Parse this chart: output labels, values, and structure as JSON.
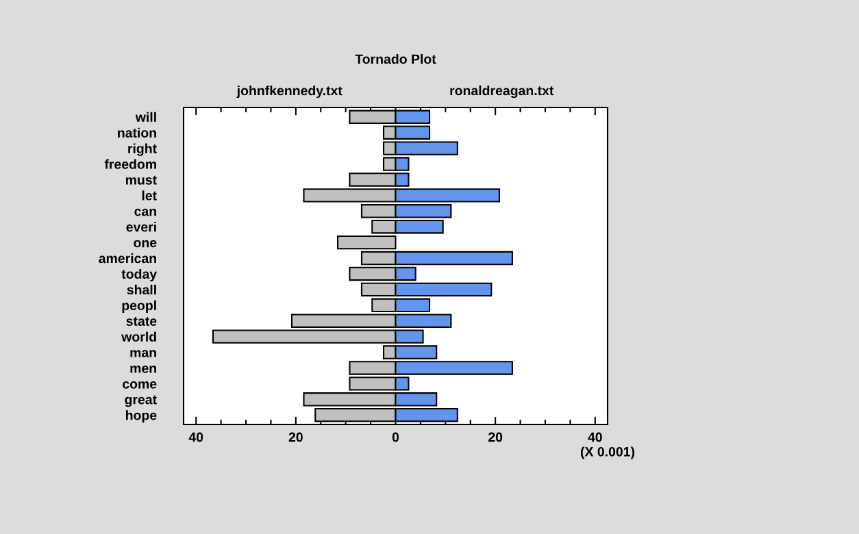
{
  "chart_data": {
    "type": "bar",
    "stacked": true,
    "orientation": "horizontal",
    "title": "Tornado Plot",
    "categories": [
      "will",
      "nation",
      "right",
      "freedom",
      "must",
      "let",
      "can",
      "everi",
      "one",
      "american",
      "today",
      "shall",
      "peopl",
      "state",
      "world",
      "man",
      "men",
      "come",
      "great",
      "hope"
    ],
    "series": [
      {
        "name": "johnfkennedy.txt",
        "color": "#c0c0c0",
        "values": [
          -9.2,
          -2.4,
          -2.4,
          -2.4,
          -9.2,
          -18.4,
          -6.8,
          -4.7,
          -11.6,
          -6.8,
          -9.2,
          -6.8,
          -4.7,
          -20.8,
          -36.6,
          -2.4,
          -9.2,
          -9.2,
          -18.4,
          -16.1
        ]
      },
      {
        "name": "ronaldreagan.txt",
        "color": "#6495ed",
        "values": [
          6.8,
          6.8,
          12.4,
          2.6,
          2.6,
          20.8,
          11.1,
          9.5,
          null,
          23.4,
          4.0,
          19.2,
          6.8,
          11.1,
          5.5,
          8.2,
          23.4,
          2.6,
          8.2,
          12.4
        ]
      }
    ],
    "xlim": [
      -42.5,
      42.5
    ],
    "xticks": [
      {
        "value": -40,
        "label": "40"
      },
      {
        "value": -35,
        "label": null
      },
      {
        "value": -30,
        "label": null
      },
      {
        "value": -25,
        "label": null
      },
      {
        "value": -20,
        "label": "20"
      },
      {
        "value": -15,
        "label": null
      },
      {
        "value": -10,
        "label": null
      },
      {
        "value": -5,
        "label": null
      },
      0,
      {
        "value": 5,
        "label": null
      },
      {
        "value": 10,
        "label": null
      },
      {
        "value": 15,
        "label": null
      },
      20,
      {
        "value": 25,
        "label": null
      },
      {
        "value": 30,
        "label": null
      },
      {
        "value": 35,
        "label": null
      },
      40
    ],
    "annotations": [
      "(X 0.001)"
    ],
    "grid": false,
    "legend": false
  }
}
